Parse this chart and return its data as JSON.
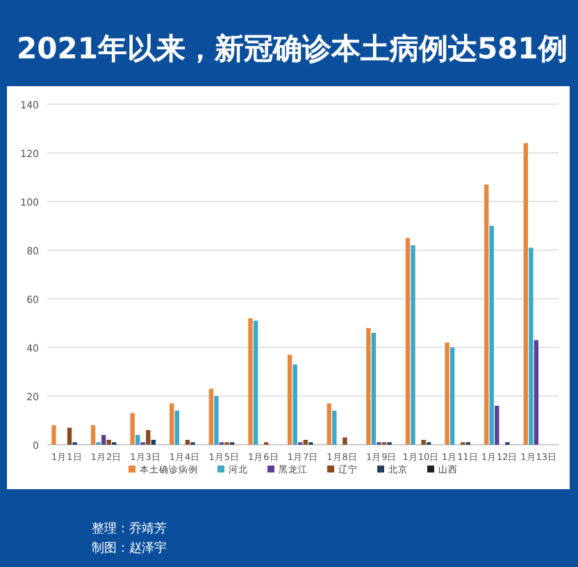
{
  "chart_data": {
    "type": "bar",
    "title": "2021年以来，新冠确诊本土病例达581例",
    "categories": [
      "1月1日",
      "1月2日",
      "1月3日",
      "1月4日",
      "1月5日",
      "1月6日",
      "1月7日",
      "1月8日",
      "1月9日",
      "1月10日",
      "1月11日",
      "1月12日",
      "1月13日"
    ],
    "series": [
      {
        "name": "本土确诊病例",
        "color": "#e8873c",
        "values": [
          8,
          8,
          13,
          17,
          23,
          52,
          37,
          17,
          48,
          85,
          42,
          107,
          124
        ]
      },
      {
        "name": "河北",
        "color": "#3ba7c9",
        "values": [
          0,
          1,
          4,
          14,
          20,
          51,
          33,
          14,
          46,
          82,
          40,
          90,
          81
        ]
      },
      {
        "name": "黑龙江",
        "color": "#5c3f91",
        "values": [
          0,
          4,
          1,
          0,
          1,
          0,
          1,
          0,
          1,
          0,
          0,
          16,
          43
        ]
      },
      {
        "name": "辽宁",
        "color": "#8a4a1f",
        "values": [
          7,
          2,
          6,
          2,
          1,
          1,
          2,
          3,
          1,
          2,
          1,
          0,
          0
        ]
      },
      {
        "name": "北京",
        "color": "#1f3d5c",
        "values": [
          1,
          1,
          2,
          1,
          1,
          0,
          1,
          0,
          1,
          1,
          1,
          1,
          0
        ]
      },
      {
        "name": "山西",
        "color": "#222222",
        "values": [
          0,
          0,
          0,
          0,
          0,
          0,
          0,
          0,
          0,
          0,
          0,
          0,
          0
        ]
      }
    ],
    "ylim": [
      0,
      140
    ],
    "yticks": [
      0,
      20,
      40,
      60,
      80,
      100,
      120,
      140
    ],
    "grid": "y",
    "legend": "bottom",
    "annotations": [
      "整理：乔靖芳",
      "制图：赵泽宇"
    ]
  }
}
